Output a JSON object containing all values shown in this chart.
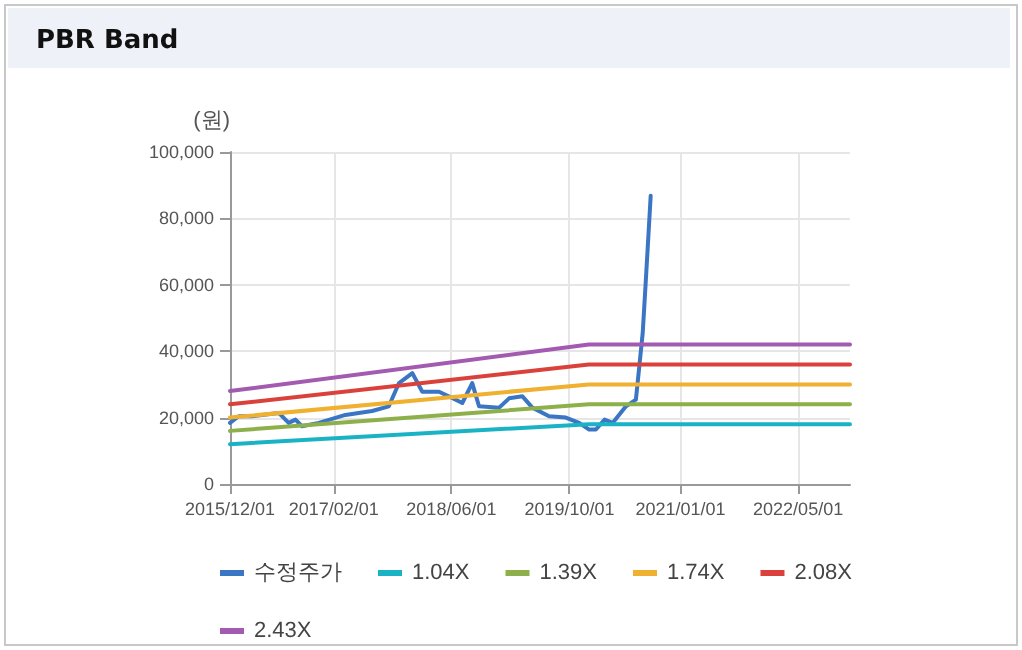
{
  "chart_data": {
    "type": "line",
    "title": "PBR Band",
    "ylabel": "(원)",
    "xlim": [
      "2015-12-01",
      "2022-12-01"
    ],
    "xticks": [
      {
        "value": "2015-12-01",
        "label": "2015/12/01"
      },
      {
        "value": "2017-02-01",
        "label": "2017/02/01"
      },
      {
        "value": "2018-06-01",
        "label": "2018/06/01"
      },
      {
        "value": "2019-10-01",
        "label": "2019/10/01"
      },
      {
        "value": "2021-01-01",
        "label": "2021/01/01"
      },
      {
        "value": "2022-05-01",
        "label": "2022/05/01"
      }
    ],
    "ylim": [
      0,
      100000
    ],
    "yticks": [
      {
        "value": 0,
        "label": "0"
      },
      {
        "value": 20000,
        "label": "20,000"
      },
      {
        "value": 40000,
        "label": "40,000"
      },
      {
        "value": 60000,
        "label": "60,000"
      },
      {
        "value": 80000,
        "label": "80,000"
      },
      {
        "value": 100000,
        "label": "100,000"
      }
    ],
    "grid": true,
    "legend": "bottom",
    "marker": "none",
    "line_style": "solid",
    "series": [
      {
        "name": "수정주가",
        "color": "#3a76c4",
        "x": [
          "2015-12-01",
          "2016-01-06",
          "2016-03-01",
          "2016-06-19",
          "2016-07-30",
          "2016-08-27",
          "2016-09-23",
          "2016-12-01",
          "2017-03-21",
          "2017-07-09",
          "2017-09-16",
          "2017-10-28",
          "2017-12-22",
          "2018-02-01",
          "2018-04-11",
          "2018-06-19",
          "2018-07-16",
          "2018-08-26",
          "2018-09-23",
          "2018-12-15",
          "2019-01-25",
          "2019-03-21",
          "2019-05-01",
          "2019-07-09",
          "2019-09-16",
          "2019-11-10",
          "2019-12-21",
          "2020-01-18",
          "2020-02-23",
          "2020-03-27",
          "2020-05-21",
          "2020-07-01",
          "2020-07-15",
          "2020-07-29",
          "2020-08-11",
          "2020-08-31"
        ],
        "values": [
          18400,
          20400,
          20400,
          21400,
          18400,
          19400,
          17400,
          18400,
          20800,
          22000,
          23400,
          30400,
          33400,
          27800,
          27800,
          25400,
          24400,
          30400,
          23400,
          23000,
          25800,
          26400,
          23000,
          20400,
          20000,
          18400,
          16400,
          16400,
          19400,
          18400,
          23400,
          25400,
          35400,
          45400,
          61400,
          86800
        ]
      },
      {
        "name": "1.04X",
        "color": "#1ab3c6",
        "x": [
          "2015-12-01",
          "2019-12-20",
          "2022-12-01"
        ],
        "values": [
          12000,
          18000,
          18000
        ]
      },
      {
        "name": "1.39X",
        "color": "#8db04a",
        "x": [
          "2015-12-01",
          "2019-12-20",
          "2022-12-01"
        ],
        "values": [
          16000,
          24000,
          24000
        ]
      },
      {
        "name": "1.74X",
        "color": "#f0b030",
        "x": [
          "2015-12-01",
          "2019-12-20",
          "2022-12-01"
        ],
        "values": [
          20000,
          30000,
          30000
        ]
      },
      {
        "name": "2.08X",
        "color": "#d9413a",
        "x": [
          "2015-12-01",
          "2019-12-20",
          "2022-12-01"
        ],
        "values": [
          24000,
          36000,
          36000
        ]
      },
      {
        "name": "2.43X",
        "color": "#a25bb0",
        "x": [
          "2015-12-01",
          "2019-12-20",
          "2022-12-01"
        ],
        "values": [
          28000,
          42000,
          42000
        ]
      }
    ]
  }
}
